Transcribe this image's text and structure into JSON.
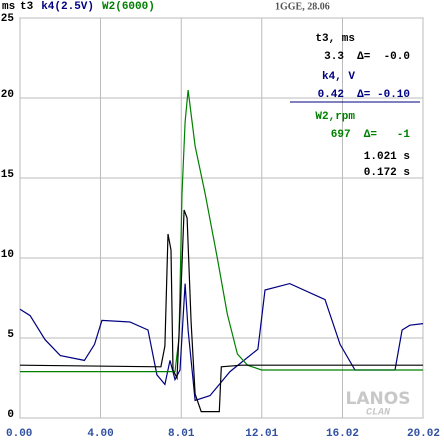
{
  "chart_data": {
    "type": "line",
    "y_label": "ms",
    "subtitle": "1GGE, 28.06",
    "xlim": [
      0,
      20.02
    ],
    "ylim": [
      0,
      25
    ],
    "xticks": [
      {
        "value": 0,
        "label": "0.00"
      },
      {
        "value": 4,
        "label": "4.00"
      },
      8.01,
      12.01,
      16.02,
      20.02
    ],
    "yticks": [
      0,
      5,
      10,
      15,
      20,
      25
    ],
    "grid": true,
    "series": [
      {
        "name": "t3",
        "color": "#000000",
        "x": [
          0,
          7.0,
          7.2,
          7.35,
          7.5,
          7.6,
          7.8,
          8.0,
          8.15,
          8.3,
          8.5,
          8.7,
          9.0,
          9.9,
          10.0,
          11,
          20.02
        ],
        "values": [
          3.3,
          3.2,
          4.5,
          11.5,
          10.5,
          3,
          2.5,
          8,
          13.0,
          12.5,
          6,
          1.5,
          0.4,
          0.4,
          3.2,
          3.3,
          3.3
        ]
      },
      {
        "name": "k4(2.5V)",
        "color": "#000080",
        "x": [
          0,
          0.5,
          1.24,
          2.0,
          3.2,
          3.7,
          4.07,
          5.46,
          6.36,
          6.8,
          7.2,
          7.45,
          7.7,
          7.95,
          8.2,
          8.35,
          8.7,
          9.44,
          10.43,
          11.82,
          12.17,
          13.4,
          15.15,
          15.9,
          16.64,
          18.63,
          18.98,
          19.37,
          20.02
        ],
        "values": [
          6.8,
          6.4,
          4.9,
          3.9,
          3.6,
          4.6,
          6.1,
          6.0,
          5.5,
          2.7,
          2.1,
          3.6,
          2.4,
          3.0,
          8.4,
          5.5,
          1.1,
          1.4,
          2.9,
          4.3,
          8.0,
          8.4,
          7.4,
          4.6,
          3.0,
          3.0,
          5.5,
          5.8,
          5.9
        ]
      },
      {
        "name": "W2(6000)",
        "color": "#008000",
        "x": [
          0,
          7.7,
          7.9,
          8.05,
          8.2,
          8.35,
          8.5,
          8.7,
          9.2,
          9.8,
          10.3,
          10.8,
          11.3,
          12,
          20.02
        ],
        "values": [
          2.9,
          2.9,
          5,
          14,
          18.5,
          20.5,
          19,
          17,
          14,
          10,
          6.5,
          4,
          3.3,
          3.0,
          3.0
        ]
      }
    ],
    "annotations": [
      {
        "text": "t3, ms",
        "color": "#000000"
      },
      {
        "text": "3.3  Δ=  -0.0",
        "color": "#000000"
      },
      {
        "text": "k4, V",
        "color": "#000080"
      },
      {
        "text": "0.42  Δ= -0.10",
        "color": "#000080"
      },
      {
        "text": "W2,rpm",
        "color": "#008000"
      },
      {
        "text": "697  Δ=   -1",
        "color": "#008000"
      },
      {
        "text": "1.021 s",
        "color": "#000000"
      },
      {
        "text": "0.172 s",
        "color": "#000000"
      }
    ],
    "watermark": [
      "LANOS",
      "CLAN"
    ]
  }
}
